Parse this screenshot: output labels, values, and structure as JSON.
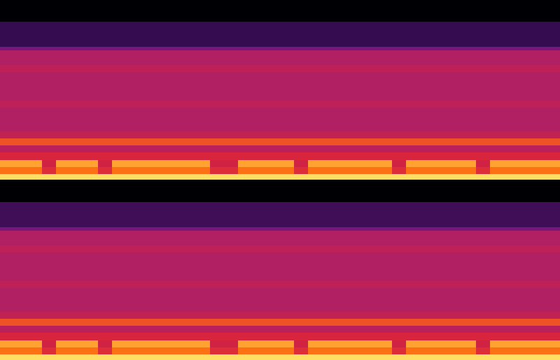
{
  "chart_data": [
    {
      "type": "heatmap",
      "tick_labels": false,
      "xlim": [
        0,
        40
      ],
      "ylim": [
        0,
        1
      ],
      "zlim": [
        0,
        100
      ],
      "x_bins": [
        0,
        1,
        2,
        3,
        4,
        5,
        6,
        7,
        8,
        9,
        10,
        11,
        12,
        13,
        14,
        15,
        16,
        17,
        18,
        19,
        20,
        21,
        22,
        23,
        24,
        25,
        26,
        27,
        28,
        29,
        30,
        31,
        32,
        33,
        34,
        35,
        36,
        37,
        38,
        39,
        40
      ],
      "y_bins": [
        0,
        0.03,
        0.07,
        0.11,
        0.15,
        0.19,
        0.23,
        0.27,
        0.4,
        0.44,
        0.6,
        0.64,
        0.72,
        0.74,
        0.88,
        1
      ],
      "cells": [
        [
          95,
          95,
          95,
          95,
          95,
          95,
          95,
          95,
          95,
          95,
          95,
          95,
          95,
          95,
          95,
          95,
          95,
          95,
          95,
          95,
          95,
          95,
          95,
          95,
          95,
          95,
          95,
          95,
          95,
          95,
          95,
          95,
          95,
          95,
          95,
          95,
          95,
          95,
          95,
          95
        ],
        [
          78,
          78,
          78,
          62,
          78,
          78,
          78,
          62,
          78,
          78,
          78,
          78,
          78,
          78,
          78,
          62,
          62,
          78,
          78,
          78,
          78,
          62,
          78,
          78,
          78,
          78,
          78,
          78,
          62,
          78,
          78,
          78,
          78,
          78,
          62,
          78,
          78,
          78,
          78,
          78
        ],
        [
          86,
          86,
          86,
          58,
          86,
          86,
          86,
          58,
          86,
          86,
          86,
          86,
          86,
          86,
          86,
          58,
          58,
          86,
          86,
          86,
          86,
          58,
          86,
          86,
          86,
          86,
          86,
          86,
          58,
          86,
          86,
          86,
          86,
          86,
          58,
          86,
          86,
          86,
          86,
          86
        ],
        [
          60,
          60,
          60,
          60,
          60,
          60,
          60,
          60,
          60,
          60,
          60,
          60,
          60,
          60,
          60,
          60,
          60,
          60,
          60,
          60,
          60,
          60,
          60,
          60,
          60,
          60,
          60,
          60,
          60,
          60,
          60,
          60,
          60,
          60,
          60,
          60,
          60,
          60,
          60,
          60
        ],
        [
          52,
          52,
          52,
          52,
          52,
          52,
          52,
          52,
          52,
          52,
          52,
          52,
          52,
          52,
          52,
          52,
          52,
          52,
          52,
          52,
          52,
          52,
          52,
          52,
          52,
          52,
          52,
          52,
          52,
          52,
          52,
          52,
          52,
          52,
          52,
          52,
          52,
          52,
          52,
          52
        ],
        [
          71,
          71,
          71,
          71,
          71,
          71,
          71,
          71,
          71,
          71,
          71,
          71,
          71,
          71,
          71,
          71,
          71,
          71,
          71,
          71,
          71,
          71,
          71,
          71,
          71,
          71,
          71,
          71,
          71,
          71,
          71,
          71,
          71,
          71,
          71,
          71,
          71,
          71,
          71,
          71
        ],
        [
          54,
          54,
          54,
          54,
          54,
          54,
          54,
          54,
          54,
          54,
          54,
          54,
          54,
          54,
          54,
          54,
          54,
          54,
          54,
          54,
          54,
          54,
          54,
          54,
          54,
          54,
          54,
          54,
          54,
          54,
          54,
          54,
          54,
          54,
          54,
          54,
          54,
          54,
          54,
          54
        ],
        [
          50,
          50,
          50,
          50,
          50,
          50,
          50,
          50,
          50,
          50,
          50,
          50,
          50,
          50,
          50,
          50,
          50,
          50,
          50,
          50,
          50,
          50,
          50,
          50,
          50,
          50,
          50,
          50,
          50,
          50,
          50,
          50,
          50,
          50,
          50,
          50,
          50,
          50,
          50,
          50
        ],
        [
          53,
          53,
          53,
          53,
          53,
          53,
          53,
          53,
          53,
          53,
          53,
          53,
          53,
          53,
          53,
          53,
          53,
          53,
          53,
          53,
          53,
          53,
          53,
          53,
          53,
          53,
          53,
          53,
          53,
          53,
          53,
          53,
          53,
          53,
          53,
          53,
          53,
          53,
          53,
          53
        ],
        [
          50,
          50,
          50,
          50,
          50,
          50,
          50,
          50,
          50,
          50,
          50,
          50,
          50,
          50,
          50,
          50,
          50,
          50,
          50,
          50,
          50,
          50,
          50,
          50,
          50,
          50,
          50,
          50,
          50,
          50,
          50,
          50,
          50,
          50,
          50,
          50,
          50,
          50,
          50,
          50
        ],
        [
          53,
          53,
          53,
          53,
          53,
          53,
          53,
          53,
          53,
          53,
          53,
          53,
          53,
          53,
          53,
          53,
          53,
          53,
          53,
          53,
          53,
          53,
          53,
          53,
          53,
          53,
          53,
          53,
          53,
          53,
          53,
          53,
          53,
          53,
          53,
          53,
          53,
          53,
          53,
          53
        ],
        [
          50,
          50,
          50,
          50,
          50,
          50,
          50,
          50,
          50,
          50,
          50,
          50,
          50,
          50,
          50,
          50,
          50,
          50,
          50,
          50,
          50,
          50,
          50,
          50,
          50,
          50,
          50,
          50,
          50,
          50,
          50,
          50,
          50,
          50,
          50,
          50,
          50,
          50,
          50,
          50
        ],
        [
          35,
          35,
          35,
          35,
          35,
          35,
          35,
          35,
          35,
          35,
          35,
          35,
          35,
          35,
          35,
          35,
          35,
          35,
          35,
          35,
          35,
          35,
          35,
          35,
          35,
          35,
          35,
          35,
          35,
          35,
          35,
          35,
          35,
          35,
          35,
          35,
          35,
          35,
          35,
          35
        ],
        [
          22,
          22,
          22,
          22,
          22,
          22,
          22,
          22,
          22,
          22,
          22,
          22,
          22,
          22,
          22,
          22,
          22,
          22,
          22,
          22,
          22,
          22,
          22,
          22,
          22,
          22,
          22,
          22,
          22,
          22,
          22,
          22,
          22,
          22,
          22,
          22,
          22,
          22,
          22,
          22
        ],
        [
          0,
          0,
          0,
          0,
          0,
          0,
          0,
          0,
          0,
          0,
          0,
          0,
          0,
          0,
          0,
          0,
          0,
          0,
          0,
          0,
          0,
          0,
          0,
          0,
          0,
          0,
          0,
          0,
          0,
          0,
          0,
          0,
          0,
          0,
          0,
          0,
          0,
          0,
          0,
          0
        ]
      ]
    },
    {
      "type": "heatmap",
      "tick_labels": false,
      "xlim": [
        0,
        40
      ],
      "ylim": [
        0,
        1
      ],
      "zlim": [
        0,
        100
      ],
      "x_bins": [
        0,
        1,
        2,
        3,
        4,
        5,
        6,
        7,
        8,
        9,
        10,
        11,
        12,
        13,
        14,
        15,
        16,
        17,
        18,
        19,
        20,
        21,
        22,
        23,
        24,
        25,
        26,
        27,
        28,
        29,
        30,
        31,
        32,
        33,
        34,
        35,
        36,
        37,
        38,
        39,
        40
      ],
      "y_bins": [
        0,
        0.03,
        0.07,
        0.11,
        0.15,
        0.19,
        0.23,
        0.27,
        0.4,
        0.44,
        0.6,
        0.64,
        0.72,
        0.74,
        0.88,
        1
      ],
      "cells": [
        [
          95,
          95,
          95,
          95,
          95,
          95,
          95,
          95,
          95,
          95,
          95,
          95,
          95,
          95,
          95,
          95,
          95,
          95,
          95,
          95,
          95,
          95,
          95,
          95,
          95,
          95,
          95,
          95,
          95,
          95,
          95,
          95,
          95,
          95,
          95,
          95,
          95,
          95,
          95,
          95
        ],
        [
          78,
          78,
          78,
          62,
          78,
          78,
          78,
          62,
          78,
          78,
          78,
          78,
          78,
          78,
          78,
          62,
          62,
          78,
          78,
          78,
          78,
          62,
          78,
          78,
          78,
          78,
          78,
          78,
          62,
          78,
          78,
          78,
          78,
          78,
          62,
          78,
          78,
          78,
          78,
          78
        ],
        [
          86,
          86,
          86,
          58,
          86,
          86,
          86,
          58,
          86,
          86,
          86,
          86,
          86,
          86,
          86,
          58,
          58,
          86,
          86,
          86,
          86,
          58,
          86,
          86,
          86,
          86,
          86,
          86,
          58,
          86,
          86,
          86,
          86,
          86,
          58,
          86,
          86,
          86,
          86,
          86
        ],
        [
          60,
          60,
          60,
          60,
          60,
          60,
          60,
          60,
          60,
          60,
          60,
          60,
          60,
          60,
          60,
          60,
          60,
          60,
          60,
          60,
          60,
          60,
          60,
          60,
          60,
          60,
          60,
          60,
          60,
          60,
          60,
          60,
          60,
          60,
          60,
          60,
          60,
          60,
          60,
          60
        ],
        [
          52,
          52,
          52,
          52,
          52,
          52,
          52,
          52,
          52,
          52,
          52,
          52,
          52,
          52,
          52,
          52,
          52,
          52,
          52,
          52,
          52,
          52,
          52,
          52,
          52,
          52,
          52,
          52,
          52,
          52,
          52,
          52,
          52,
          52,
          52,
          52,
          52,
          52,
          52,
          52
        ],
        [
          71,
          71,
          71,
          71,
          71,
          71,
          71,
          71,
          71,
          71,
          71,
          71,
          71,
          71,
          71,
          71,
          71,
          71,
          71,
          71,
          71,
          71,
          71,
          71,
          71,
          71,
          71,
          71,
          71,
          71,
          71,
          71,
          71,
          71,
          71,
          71,
          71,
          71,
          71,
          71
        ],
        [
          54,
          54,
          54,
          54,
          54,
          54,
          54,
          54,
          54,
          54,
          54,
          54,
          54,
          54,
          54,
          54,
          54,
          54,
          54,
          54,
          54,
          54,
          54,
          54,
          54,
          54,
          54,
          54,
          54,
          54,
          54,
          54,
          54,
          54,
          54,
          54,
          54,
          54,
          54,
          54
        ],
        [
          50,
          50,
          50,
          50,
          50,
          50,
          50,
          50,
          50,
          50,
          50,
          50,
          50,
          50,
          50,
          50,
          50,
          50,
          50,
          50,
          50,
          50,
          50,
          50,
          50,
          50,
          50,
          50,
          50,
          50,
          50,
          50,
          50,
          50,
          50,
          50,
          50,
          50,
          50,
          50
        ],
        [
          53,
          53,
          53,
          53,
          53,
          53,
          53,
          53,
          53,
          53,
          53,
          53,
          53,
          53,
          53,
          53,
          53,
          53,
          53,
          53,
          53,
          53,
          53,
          53,
          53,
          53,
          53,
          53,
          53,
          53,
          53,
          53,
          53,
          53,
          53,
          53,
          53,
          53,
          53,
          53
        ],
        [
          50,
          50,
          50,
          50,
          50,
          50,
          50,
          50,
          50,
          50,
          50,
          50,
          50,
          50,
          50,
          50,
          50,
          50,
          50,
          50,
          50,
          50,
          50,
          50,
          50,
          50,
          50,
          50,
          50,
          50,
          50,
          50,
          50,
          50,
          50,
          50,
          50,
          50,
          50,
          50
        ],
        [
          53,
          53,
          53,
          53,
          53,
          53,
          53,
          53,
          53,
          53,
          53,
          53,
          53,
          53,
          53,
          53,
          53,
          53,
          53,
          53,
          53,
          53,
          53,
          53,
          53,
          53,
          53,
          53,
          53,
          53,
          53,
          53,
          53,
          53,
          53,
          53,
          53,
          53,
          53,
          53
        ],
        [
          50,
          50,
          50,
          50,
          50,
          50,
          50,
          50,
          50,
          50,
          50,
          50,
          50,
          50,
          50,
          50,
          50,
          50,
          50,
          50,
          50,
          50,
          50,
          50,
          50,
          50,
          50,
          50,
          50,
          50,
          50,
          50,
          50,
          50,
          50,
          50,
          50,
          50,
          50,
          50
        ],
        [
          35,
          35,
          35,
          35,
          35,
          35,
          35,
          35,
          35,
          35,
          35,
          35,
          35,
          35,
          35,
          35,
          35,
          35,
          35,
          35,
          35,
          35,
          35,
          35,
          35,
          35,
          35,
          35,
          35,
          35,
          35,
          35,
          35,
          35,
          35,
          35,
          35,
          35,
          35,
          35
        ],
        [
          24,
          24,
          24,
          24,
          24,
          24,
          24,
          24,
          24,
          24,
          24,
          24,
          24,
          24,
          24,
          24,
          24,
          24,
          24,
          24,
          24,
          24,
          24,
          24,
          24,
          24,
          24,
          24,
          24,
          24,
          24,
          24,
          24,
          24,
          24,
          24,
          24,
          24,
          24,
          24
        ],
        [
          0,
          0,
          0,
          0,
          0,
          0,
          0,
          0,
          0,
          0,
          0,
          0,
          0,
          0,
          0,
          0,
          0,
          0,
          0,
          0,
          0,
          0,
          0,
          0,
          0,
          0,
          0,
          0,
          0,
          0,
          0,
          0,
          0,
          0,
          0,
          0,
          0,
          0,
          0,
          0
        ]
      ]
    }
  ]
}
